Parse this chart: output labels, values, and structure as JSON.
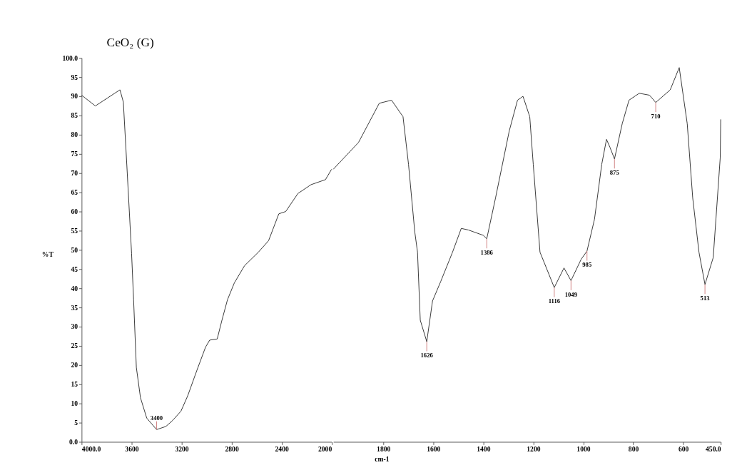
{
  "chart_data": [
    {
      "type": "line",
      "title": "CeO₂ (G)",
      "ylabel": "%T",
      "x": [
        4000,
        3890,
        3693,
        3666,
        3638,
        3600,
        3584,
        3562,
        3529,
        3479,
        3400,
        3326,
        3271,
        3205,
        3151,
        3079,
        3008,
        2975,
        2915,
        2877,
        2833,
        2778,
        2696,
        2586,
        2504,
        2422,
        2367,
        2269,
        2164,
        2049,
        2000
      ],
      "series": [
        {
          "color": "#333333",
          "values": [
            90.3,
            87.5,
            91.7,
            88.5,
            72,
            49,
            37,
            19.4,
            11.5,
            6.2,
            3.2,
            4,
            5.6,
            8,
            12,
            18.5,
            24.7,
            26.5,
            26.8,
            31.7,
            37,
            41.4,
            45.9,
            49.4,
            52.4,
            59.4,
            60,
            64.7,
            67,
            68.3,
            71
          ]
        }
      ],
      "xlim": [
        4000,
        2000
      ],
      "xticks": [
        {
          "value": 4000,
          "label": "4000.0"
        },
        3600,
        3200,
        2800,
        2400,
        2000
      ],
      "ylim": [
        0,
        100
      ],
      "yticks": [
        {
          "value": 0,
          "label": "0.0"
        },
        5,
        10,
        15,
        20,
        25,
        30,
        35,
        40,
        45,
        50,
        55,
        60,
        65,
        70,
        75,
        80,
        85,
        90,
        95,
        {
          "value": 100,
          "label": "100.0"
        }
      ],
      "annotations": [
        {
          "text": "3400",
          "x": 3400,
          "y": 3.2
        }
      ],
      "grid": false,
      "marker": "none",
      "line_style": "solid"
    },
    {
      "type": "line",
      "xlabel": "cm-1",
      "x": [
        2000,
        1899,
        1816,
        1767,
        1721,
        1699,
        1674,
        1663,
        1652,
        1626,
        1603,
        1570,
        1523,
        1488,
        1460,
        1400,
        1386,
        1351,
        1296,
        1263,
        1241,
        1214,
        1200,
        1173,
        1137,
        1116,
        1077,
        1049,
        1008,
        985,
        955,
        926,
        907,
        893,
        875,
        844,
        817,
        776,
        735,
        710,
        652,
        616,
        584,
        562,
        537,
        513,
        480,
        452,
        450
      ],
      "series": [
        {
          "color": "#333333",
          "values": [
            71,
            78,
            88.2,
            89,
            84.7,
            72.3,
            54.7,
            49.4,
            31.7,
            26.1,
            36.7,
            41.8,
            49.4,
            55.6,
            55.2,
            53.8,
            52.9,
            63.5,
            81,
            89,
            90,
            84.7,
            72.3,
            49.4,
            43.6,
            40.2,
            45.3,
            42,
            47.6,
            49.7,
            58,
            72.3,
            78.8,
            76.7,
            73.7,
            82.9,
            89,
            90.8,
            90.3,
            88.4,
            91.7,
            97.5,
            82.9,
            63.5,
            49.4,
            41,
            48,
            74,
            84
          ]
        }
      ],
      "xlim": [
        2000,
        450
      ],
      "xticks": [
        1800,
        1600,
        1400,
        1200,
        1000,
        800,
        600,
        {
          "value": 450,
          "label": "450.0"
        }
      ],
      "ylim": [
        0,
        100
      ],
      "tick_labels": "x",
      "annotations": [
        {
          "text": "1626",
          "x": 1626,
          "y": 26.1
        },
        {
          "text": "1386",
          "x": 1386,
          "y": 52.9
        },
        {
          "text": "1116",
          "x": 1116,
          "y": 40.2
        },
        {
          "text": "1049",
          "x": 1049,
          "y": 42
        },
        {
          "text": "985",
          "x": 985,
          "y": 49.7
        },
        {
          "text": "875",
          "x": 875,
          "y": 73.7
        },
        {
          "text": "710",
          "x": 710,
          "y": 88.4
        },
        {
          "text": "513",
          "x": 513,
          "y": 41
        }
      ],
      "grid": false,
      "marker": "none",
      "line_style": "solid"
    }
  ]
}
